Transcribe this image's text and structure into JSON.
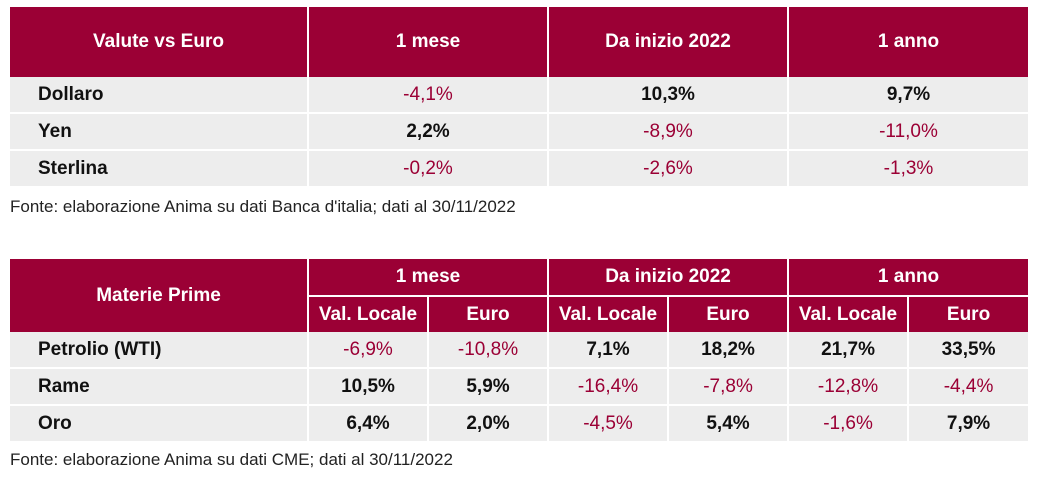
{
  "table1": {
    "headers": [
      "Valute vs Euro",
      "1 mese",
      "Da inizio 2022",
      "1 anno"
    ],
    "rows": [
      {
        "label": "Dollaro",
        "values": [
          "-4,1%",
          "10,3%",
          "9,7%"
        ]
      },
      {
        "label": "Yen",
        "values": [
          "2,2%",
          "-8,9%",
          "-11,0%"
        ]
      },
      {
        "label": "Sterlina",
        "values": [
          "-0,2%",
          "-2,6%",
          "-1,3%"
        ]
      }
    ],
    "source": "Fonte: elaborazione Anima su dati Banca d'italia; dati al 30/11/2022"
  },
  "table2": {
    "corner": "Materie Prime",
    "groups": [
      "1 mese",
      "Da inizio 2022",
      "1 anno"
    ],
    "subheaders": [
      "Val. Locale",
      "Euro",
      "Val. Locale",
      "Euro",
      "Val. Locale",
      "Euro"
    ],
    "rows": [
      {
        "label": "Petrolio (WTI)",
        "values": [
          "-6,9%",
          "-10,8%",
          "7,1%",
          "18,2%",
          "21,7%",
          "33,5%"
        ]
      },
      {
        "label": "Rame",
        "values": [
          "10,5%",
          "5,9%",
          "-16,4%",
          "-7,8%",
          "-12,8%",
          "-4,4%"
        ]
      },
      {
        "label": "Oro",
        "values": [
          "6,4%",
          "2,0%",
          "-4,5%",
          "5,4%",
          "-1,6%",
          "7,9%"
        ]
      }
    ],
    "source": "Fonte: elaborazione Anima su dati CME; dati al 30/11/2022"
  },
  "colors": {
    "header_bg": "#9b0035",
    "negative": "#9b0035",
    "row_bg": "#ededed"
  }
}
